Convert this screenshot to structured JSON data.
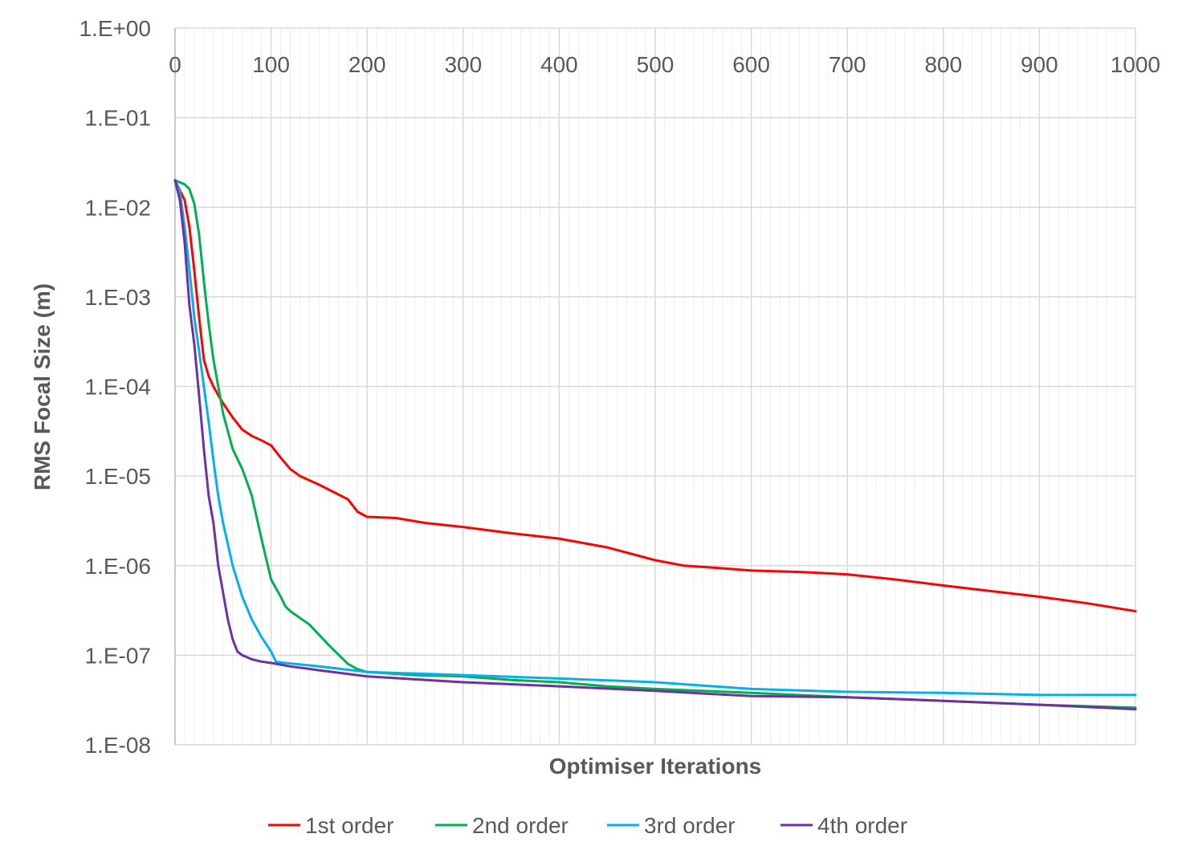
{
  "chart_data": {
    "type": "line",
    "xlabel": "Optimiser Iterations",
    "ylabel": "RMS Focal Size (m)",
    "xlim": [
      0,
      1000
    ],
    "ylim": [
      1e-08,
      1
    ],
    "y_scale": "log",
    "x_ticks": [
      "0",
      "100",
      "200",
      "300",
      "400",
      "500",
      "600",
      "700",
      "800",
      "900",
      "1000"
    ],
    "y_ticks": [
      "1.E+00",
      "1.E-01",
      "1.E-02",
      "1.E-03",
      "1.E-04",
      "1.E-05",
      "1.E-06",
      "1.E-07",
      "1.E-08"
    ],
    "x_axis_position": "top",
    "grid": true,
    "legend_position": "bottom",
    "series": [
      {
        "name": "1st order",
        "color": "#FF0000",
        "x": [
          0,
          10,
          15,
          20,
          25,
          30,
          35,
          40,
          45,
          50,
          60,
          70,
          80,
          90,
          100,
          110,
          120,
          130,
          150,
          180,
          190,
          200,
          230,
          260,
          300,
          350,
          400,
          450,
          500,
          530,
          560,
          600,
          650,
          700,
          750,
          800,
          850,
          900,
          950,
          1000
        ],
        "y": [
          0.02,
          0.012,
          0.006,
          0.002,
          0.0006,
          0.0002,
          0.00013,
          0.0001,
          8e-05,
          6.5e-05,
          4.5e-05,
          3.3e-05,
          2.8e-05,
          2.5e-05,
          2.2e-05,
          1.6e-05,
          1.2e-05,
          1e-05,
          8e-06,
          5.5e-06,
          4e-06,
          3.5e-06,
          3.4e-06,
          3e-06,
          2.7e-06,
          2.3e-06,
          2e-06,
          1.6e-06,
          1.15e-06,
          1e-06,
          9.5e-07,
          8.8e-07,
          8.5e-07,
          8e-07,
          7e-07,
          6e-07,
          5.2e-07,
          4.5e-07,
          3.8e-07,
          3.1e-07
        ]
      },
      {
        "name": "2nd order",
        "color": "#00B050",
        "x": [
          0,
          10,
          15,
          20,
          25,
          30,
          35,
          40,
          45,
          50,
          60,
          70,
          80,
          90,
          100,
          110,
          115,
          120,
          140,
          160,
          180,
          190,
          200,
          250,
          300,
          350,
          400,
          450,
          500,
          600,
          700,
          800,
          900,
          1000
        ],
        "y": [
          0.02,
          0.018,
          0.016,
          0.011,
          0.005,
          0.0015,
          0.0005,
          0.0002,
          0.0001,
          5e-05,
          2e-05,
          1.2e-05,
          6e-06,
          2e-06,
          7e-07,
          4.5e-07,
          3.5e-07,
          3.1e-07,
          2.2e-07,
          1.3e-07,
          8e-08,
          7e-08,
          6.5e-08,
          6e-08,
          5.8e-08,
          5.3e-08,
          5e-08,
          4.5e-08,
          4.2e-08,
          3.8e-08,
          3.4e-08,
          3.1e-08,
          2.8e-08,
          2.6e-08
        ]
      },
      {
        "name": "3rd order",
        "color": "#00B0F0",
        "x": [
          0,
          5,
          10,
          15,
          20,
          25,
          30,
          35,
          40,
          45,
          50,
          60,
          70,
          80,
          90,
          100,
          105,
          110,
          150,
          200,
          300,
          400,
          500,
          600,
          700,
          800,
          900,
          1000
        ],
        "y": [
          0.02,
          0.015,
          0.006,
          0.002,
          0.0006,
          0.00025,
          0.0001,
          4e-05,
          1.5e-05,
          6e-06,
          3e-06,
          1e-06,
          4.5e-07,
          2.5e-07,
          1.6e-07,
          1.1e-07,
          8.5e-08,
          8.3e-08,
          7.5e-08,
          6.5e-08,
          6e-08,
          5.5e-08,
          5e-08,
          4.2e-08,
          3.9e-08,
          3.8e-08,
          3.6e-08,
          3.6e-08
        ]
      },
      {
        "name": "4th order",
        "color": "#7030A0",
        "x": [
          0,
          5,
          10,
          15,
          20,
          25,
          30,
          35,
          40,
          45,
          50,
          55,
          60,
          65,
          70,
          75,
          80,
          90,
          100,
          120,
          150,
          200,
          300,
          400,
          500,
          600,
          700,
          800,
          900,
          1000
        ],
        "y": [
          0.02,
          0.012,
          0.004,
          0.0008,
          0.0003,
          8e-05,
          2e-05,
          6e-06,
          3e-06,
          1e-06,
          5e-07,
          2.5e-07,
          1.5e-07,
          1.1e-07,
          1e-07,
          9.5e-08,
          9e-08,
          8.5e-08,
          8.2e-08,
          7.5e-08,
          6.8e-08,
          5.8e-08,
          5e-08,
          4.5e-08,
          4e-08,
          3.5e-08,
          3.4e-08,
          3.1e-08,
          2.8e-08,
          2.5e-08
        ]
      }
    ]
  }
}
